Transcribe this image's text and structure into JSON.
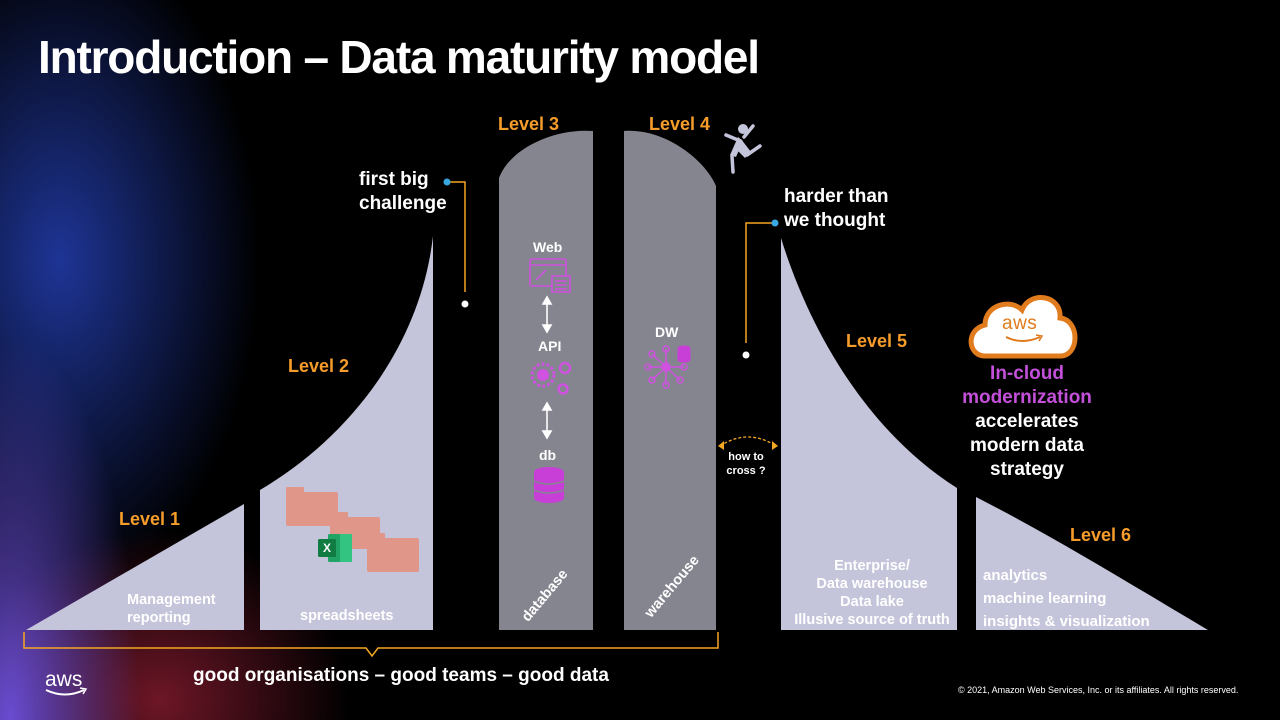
{
  "title": "Introduction – Data maturity model",
  "levels": {
    "l1": "Level 1",
    "l2": "Level 2",
    "l3": "Level 3",
    "l4": "Level 4",
    "l5": "Level 5",
    "l6": "Level 6"
  },
  "callouts": {
    "first_big_1": "first big",
    "first_big_2": "challenge",
    "harder_1": "harder than",
    "harder_2": "we thought",
    "how_to_1": "how to",
    "how_to_2": "cross ?"
  },
  "shape_labels": {
    "mgmt_1": "Management",
    "mgmt_2": "reporting",
    "spreadsheets": "spreadsheets",
    "database": "database",
    "warehouse": "warehouse",
    "ent_1": "Enterprise/",
    "ent_2": "Data warehouse",
    "ent_3": "Data lake",
    "ent_4": "Illusive source of truth",
    "an_1": "analytics",
    "an_2": "machine learning",
    "an_3": "insights & visualization"
  },
  "icons": {
    "web": "Web",
    "api": "API",
    "db": "db",
    "dw": "DW",
    "excel_letter": "X",
    "aws_cloud_text": "aws"
  },
  "cloud_message": {
    "line1": "In-cloud",
    "line2": "modernization",
    "line3": "accelerates",
    "line4": "modern data",
    "line5": "strategy"
  },
  "bottom_message": "good organisations – good teams – good data",
  "footer": {
    "logo_text": "aws",
    "copyright": "© 2021, Amazon Web Services, Inc. or its affiliates. All rights reserved."
  },
  "colors": {
    "level": "#f59c2a",
    "accent_magenta": "#c350d8",
    "light_shape": "#c4c4da",
    "dark_shape": "#858590",
    "callout_line": "#f5a623",
    "dot": "#3aa8e0",
    "spreadsheet": "#e58f7c",
    "excel": "#1f8a4c"
  }
}
